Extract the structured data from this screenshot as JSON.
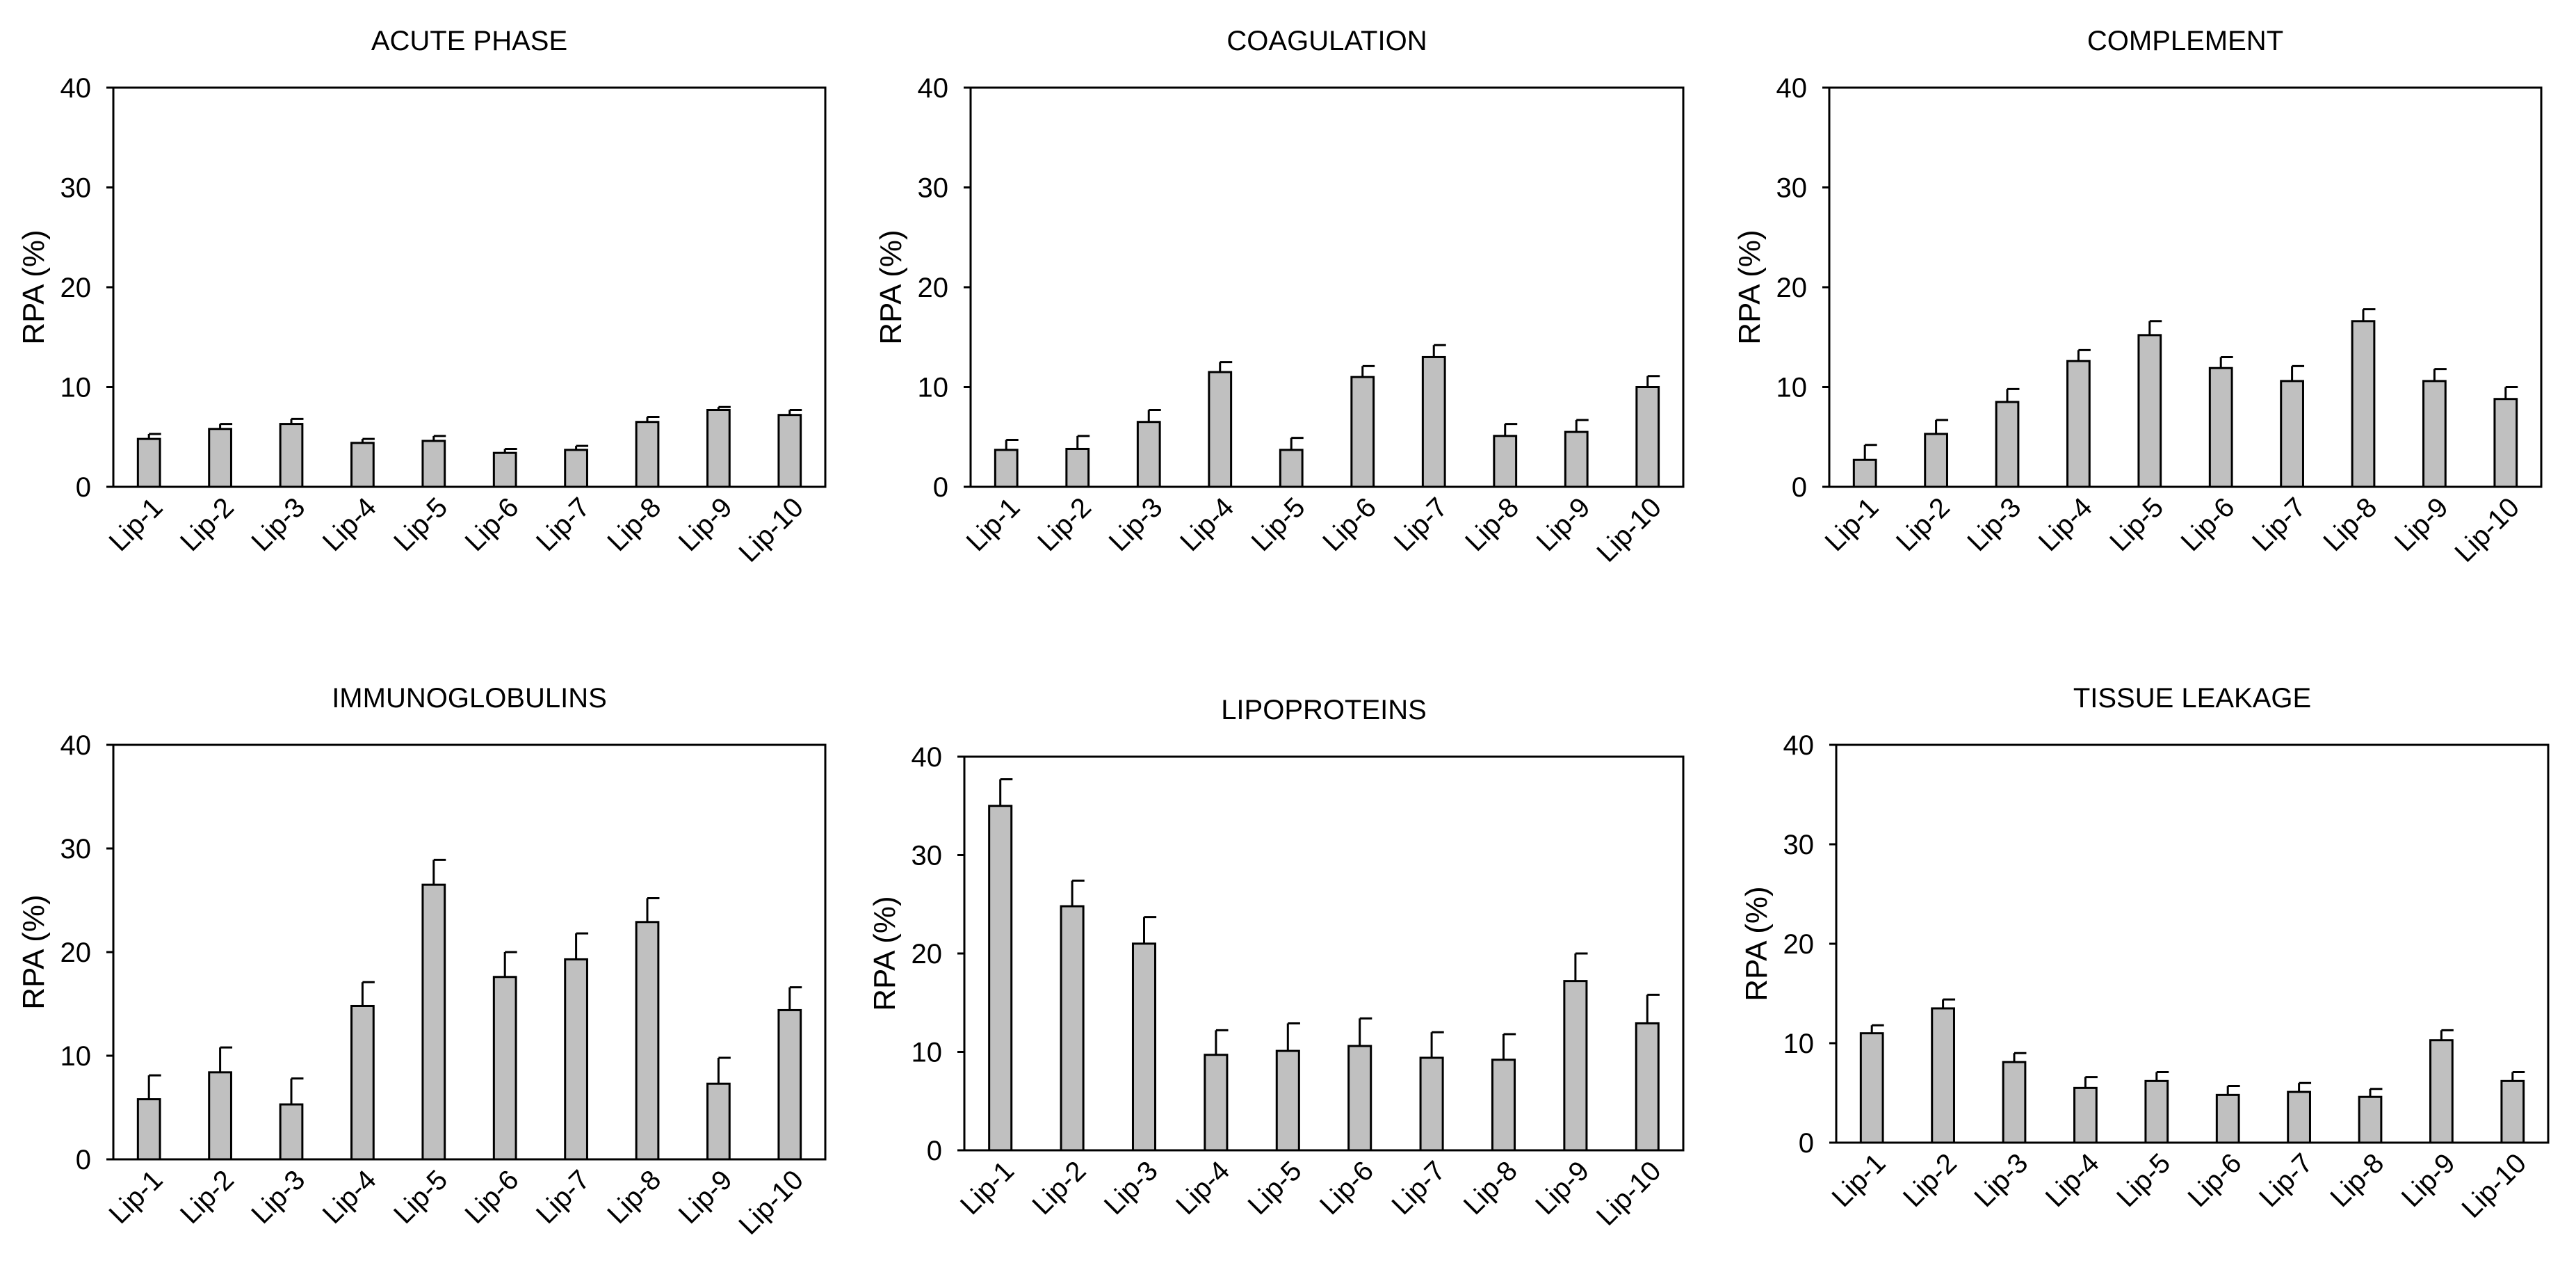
{
  "chart_data": [
    {
      "type": "bar",
      "title": "ACUTE PHASE",
      "ylabel": "RPA (%)",
      "xlabel": "",
      "ylim": [
        0,
        40
      ],
      "yticks": [
        0,
        10,
        20,
        30,
        40
      ],
      "categories": [
        "Lip-1",
        "Lip-2",
        "Lip-3",
        "Lip-4",
        "Lip-5",
        "Lip-6",
        "Lip-7",
        "Lip-8",
        "Lip-9",
        "Lip-10"
      ],
      "values": [
        4.8,
        5.8,
        6.3,
        4.4,
        4.6,
        3.4,
        3.7,
        6.5,
        7.7,
        7.2
      ],
      "errors": [
        0.5,
        0.5,
        0.5,
        0.4,
        0.5,
        0.4,
        0.4,
        0.5,
        0.3,
        0.5
      ]
    },
    {
      "type": "bar",
      "title": "COAGULATION",
      "ylabel": "RPA (%)",
      "xlabel": "",
      "ylim": [
        0,
        40
      ],
      "yticks": [
        0,
        10,
        20,
        30,
        40
      ],
      "categories": [
        "Lip-1",
        "Lip-2",
        "Lip-3",
        "Lip-4",
        "Lip-5",
        "Lip-6",
        "Lip-7",
        "Lip-8",
        "Lip-9",
        "Lip-10"
      ],
      "values": [
        3.7,
        3.8,
        6.5,
        11.5,
        3.7,
        11.0,
        13.0,
        5.1,
        5.5,
        10.0
      ],
      "errors": [
        1.0,
        1.3,
        1.2,
        1.0,
        1.2,
        1.1,
        1.2,
        1.2,
        1.2,
        1.1
      ]
    },
    {
      "type": "bar",
      "title": "COMPLEMENT",
      "ylabel": "RPA (%)",
      "xlabel": "",
      "ylim": [
        0,
        40
      ],
      "yticks": [
        0,
        10,
        20,
        30,
        40
      ],
      "categories": [
        "Lip-1",
        "Lip-2",
        "Lip-3",
        "Lip-4",
        "Lip-5",
        "Lip-6",
        "Lip-7",
        "Lip-8",
        "Lip-9",
        "Lip-10"
      ],
      "values": [
        2.7,
        5.3,
        8.5,
        12.6,
        15.2,
        11.9,
        10.6,
        16.6,
        10.6,
        8.8
      ],
      "errors": [
        1.5,
        1.4,
        1.3,
        1.1,
        1.4,
        1.1,
        1.5,
        1.2,
        1.2,
        1.2
      ]
    },
    {
      "type": "bar",
      "title": "IMMUNOGLOBULINS",
      "ylabel": "RPA (%)",
      "xlabel": "",
      "ylim": [
        0,
        40
      ],
      "yticks": [
        0,
        10,
        20,
        30,
        40
      ],
      "categories": [
        "Lip-1",
        "Lip-2",
        "Lip-3",
        "Lip-4",
        "Lip-5",
        "Lip-6",
        "Lip-7",
        "Lip-8",
        "Lip-9",
        "Lip-10"
      ],
      "values": [
        5.8,
        8.4,
        5.3,
        14.8,
        26.5,
        17.6,
        19.3,
        22.9,
        7.3,
        14.4
      ],
      "errors": [
        2.3,
        2.4,
        2.5,
        2.3,
        2.4,
        2.4,
        2.5,
        2.3,
        2.5,
        2.2
      ]
    },
    {
      "type": "bar",
      "title": "LIPOPROTEINS",
      "ylabel": "RPA (%)",
      "xlabel": "",
      "ylim": [
        0,
        40
      ],
      "yticks": [
        0,
        10,
        20,
        30,
        40
      ],
      "categories": [
        "Lip-1",
        "Lip-2",
        "Lip-3",
        "Lip-4",
        "Lip-5",
        "Lip-6",
        "Lip-7",
        "Lip-8",
        "Lip-9",
        "Lip-10"
      ],
      "values": [
        35.0,
        24.8,
        21.0,
        9.7,
        10.1,
        10.6,
        9.4,
        9.2,
        17.2,
        12.9
      ],
      "errors": [
        2.7,
        2.6,
        2.7,
        2.5,
        2.8,
        2.8,
        2.6,
        2.6,
        2.8,
        2.9
      ]
    },
    {
      "type": "bar",
      "title": "TISSUE LEAKAGE",
      "ylabel": "RPA (%)",
      "xlabel": "",
      "ylim": [
        0,
        40
      ],
      "yticks": [
        0,
        10,
        20,
        30,
        40
      ],
      "categories": [
        "Lip-1",
        "Lip-2",
        "Lip-3",
        "Lip-4",
        "Lip-5",
        "Lip-6",
        "Lip-7",
        "Lip-8",
        "Lip-9",
        "Lip-10"
      ],
      "values": [
        11.0,
        13.5,
        8.1,
        5.5,
        6.2,
        4.8,
        5.1,
        4.6,
        10.3,
        6.2
      ],
      "errors": [
        0.8,
        0.9,
        0.9,
        1.1,
        0.9,
        0.9,
        0.9,
        0.8,
        1.0,
        0.9
      ]
    }
  ]
}
